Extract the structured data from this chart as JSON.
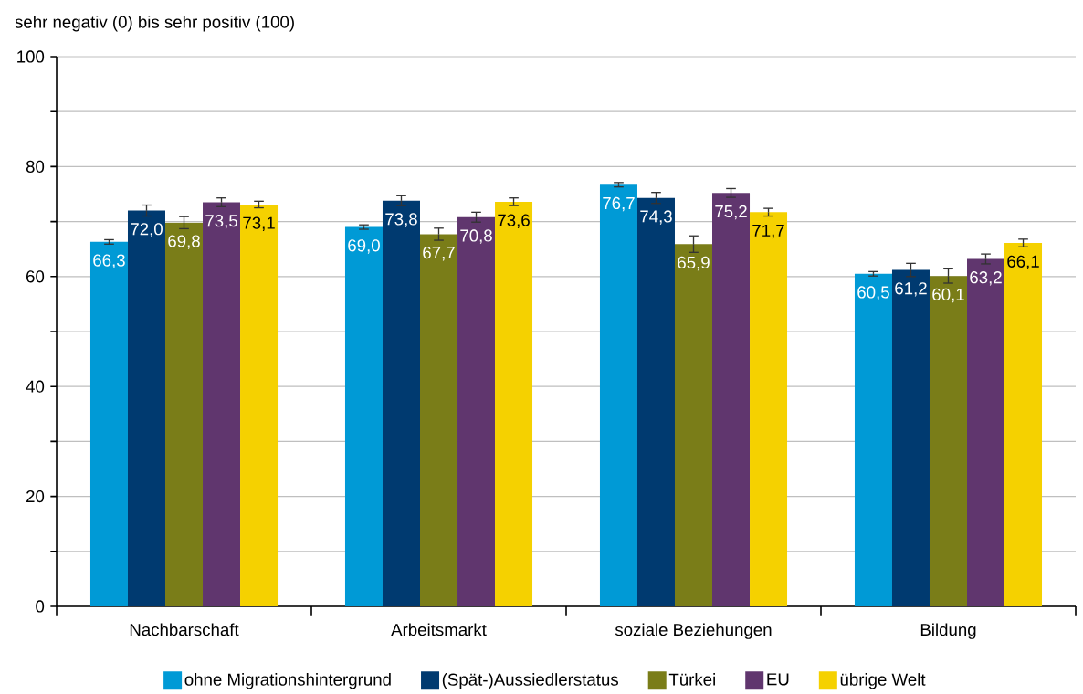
{
  "chart_data": {
    "type": "bar",
    "ylabel": "sehr negativ (0) bis sehr positiv (100)",
    "categories": [
      "Nachbarschaft",
      "Arbeitsmarkt",
      "soziale Beziehungen",
      "Bildung"
    ],
    "series": [
      {
        "name": "ohne Migrationshintergrund",
        "color": "#009ad6",
        "values": [
          66.3,
          69.0,
          76.7,
          60.5
        ],
        "errors": [
          0.4,
          0.4,
          0.4,
          0.4
        ],
        "value_labels": [
          "66,3",
          "69,0",
          "76,7",
          "60,5"
        ]
      },
      {
        "name": "(Spät-)Aussiedlerstatus",
        "color": "#003a70",
        "values": [
          72.0,
          73.8,
          74.3,
          61.2
        ],
        "errors": [
          1.0,
          0.9,
          1.0,
          1.2
        ],
        "value_labels": [
          "72,0",
          "73,8",
          "74,3",
          "61,2"
        ]
      },
      {
        "name": "Türkei",
        "color": "#7a7d18",
        "values": [
          69.8,
          67.7,
          65.9,
          60.1
        ],
        "errors": [
          1.1,
          1.1,
          1.5,
          1.3
        ],
        "value_labels": [
          "69,8",
          "67,7",
          "65,9",
          "60,1"
        ]
      },
      {
        "name": "EU",
        "color": "#60366e",
        "values": [
          73.5,
          70.8,
          75.2,
          63.2
        ],
        "errors": [
          0.8,
          0.9,
          0.8,
          0.9
        ],
        "value_labels": [
          "73,5",
          "70,8",
          "75,2",
          "63,2"
        ]
      },
      {
        "name": "übrige Welt",
        "color": "#f5d100",
        "values": [
          73.1,
          73.6,
          71.7,
          66.1
        ],
        "errors": [
          0.6,
          0.7,
          0.7,
          0.7
        ],
        "value_labels": [
          "73,1",
          "73,6",
          "71,7",
          "66,1"
        ]
      }
    ],
    "ylim": [
      0,
      100
    ],
    "yticks": [
      0,
      {
        "value": 10,
        "label": null
      },
      20,
      {
        "value": 30,
        "label": null
      },
      40,
      {
        "value": 50,
        "label": null
      },
      60,
      {
        "value": 70,
        "label": null
      },
      80,
      {
        "value": 90,
        "label": null
      },
      100
    ],
    "grid": "y",
    "legend": "bottom"
  }
}
